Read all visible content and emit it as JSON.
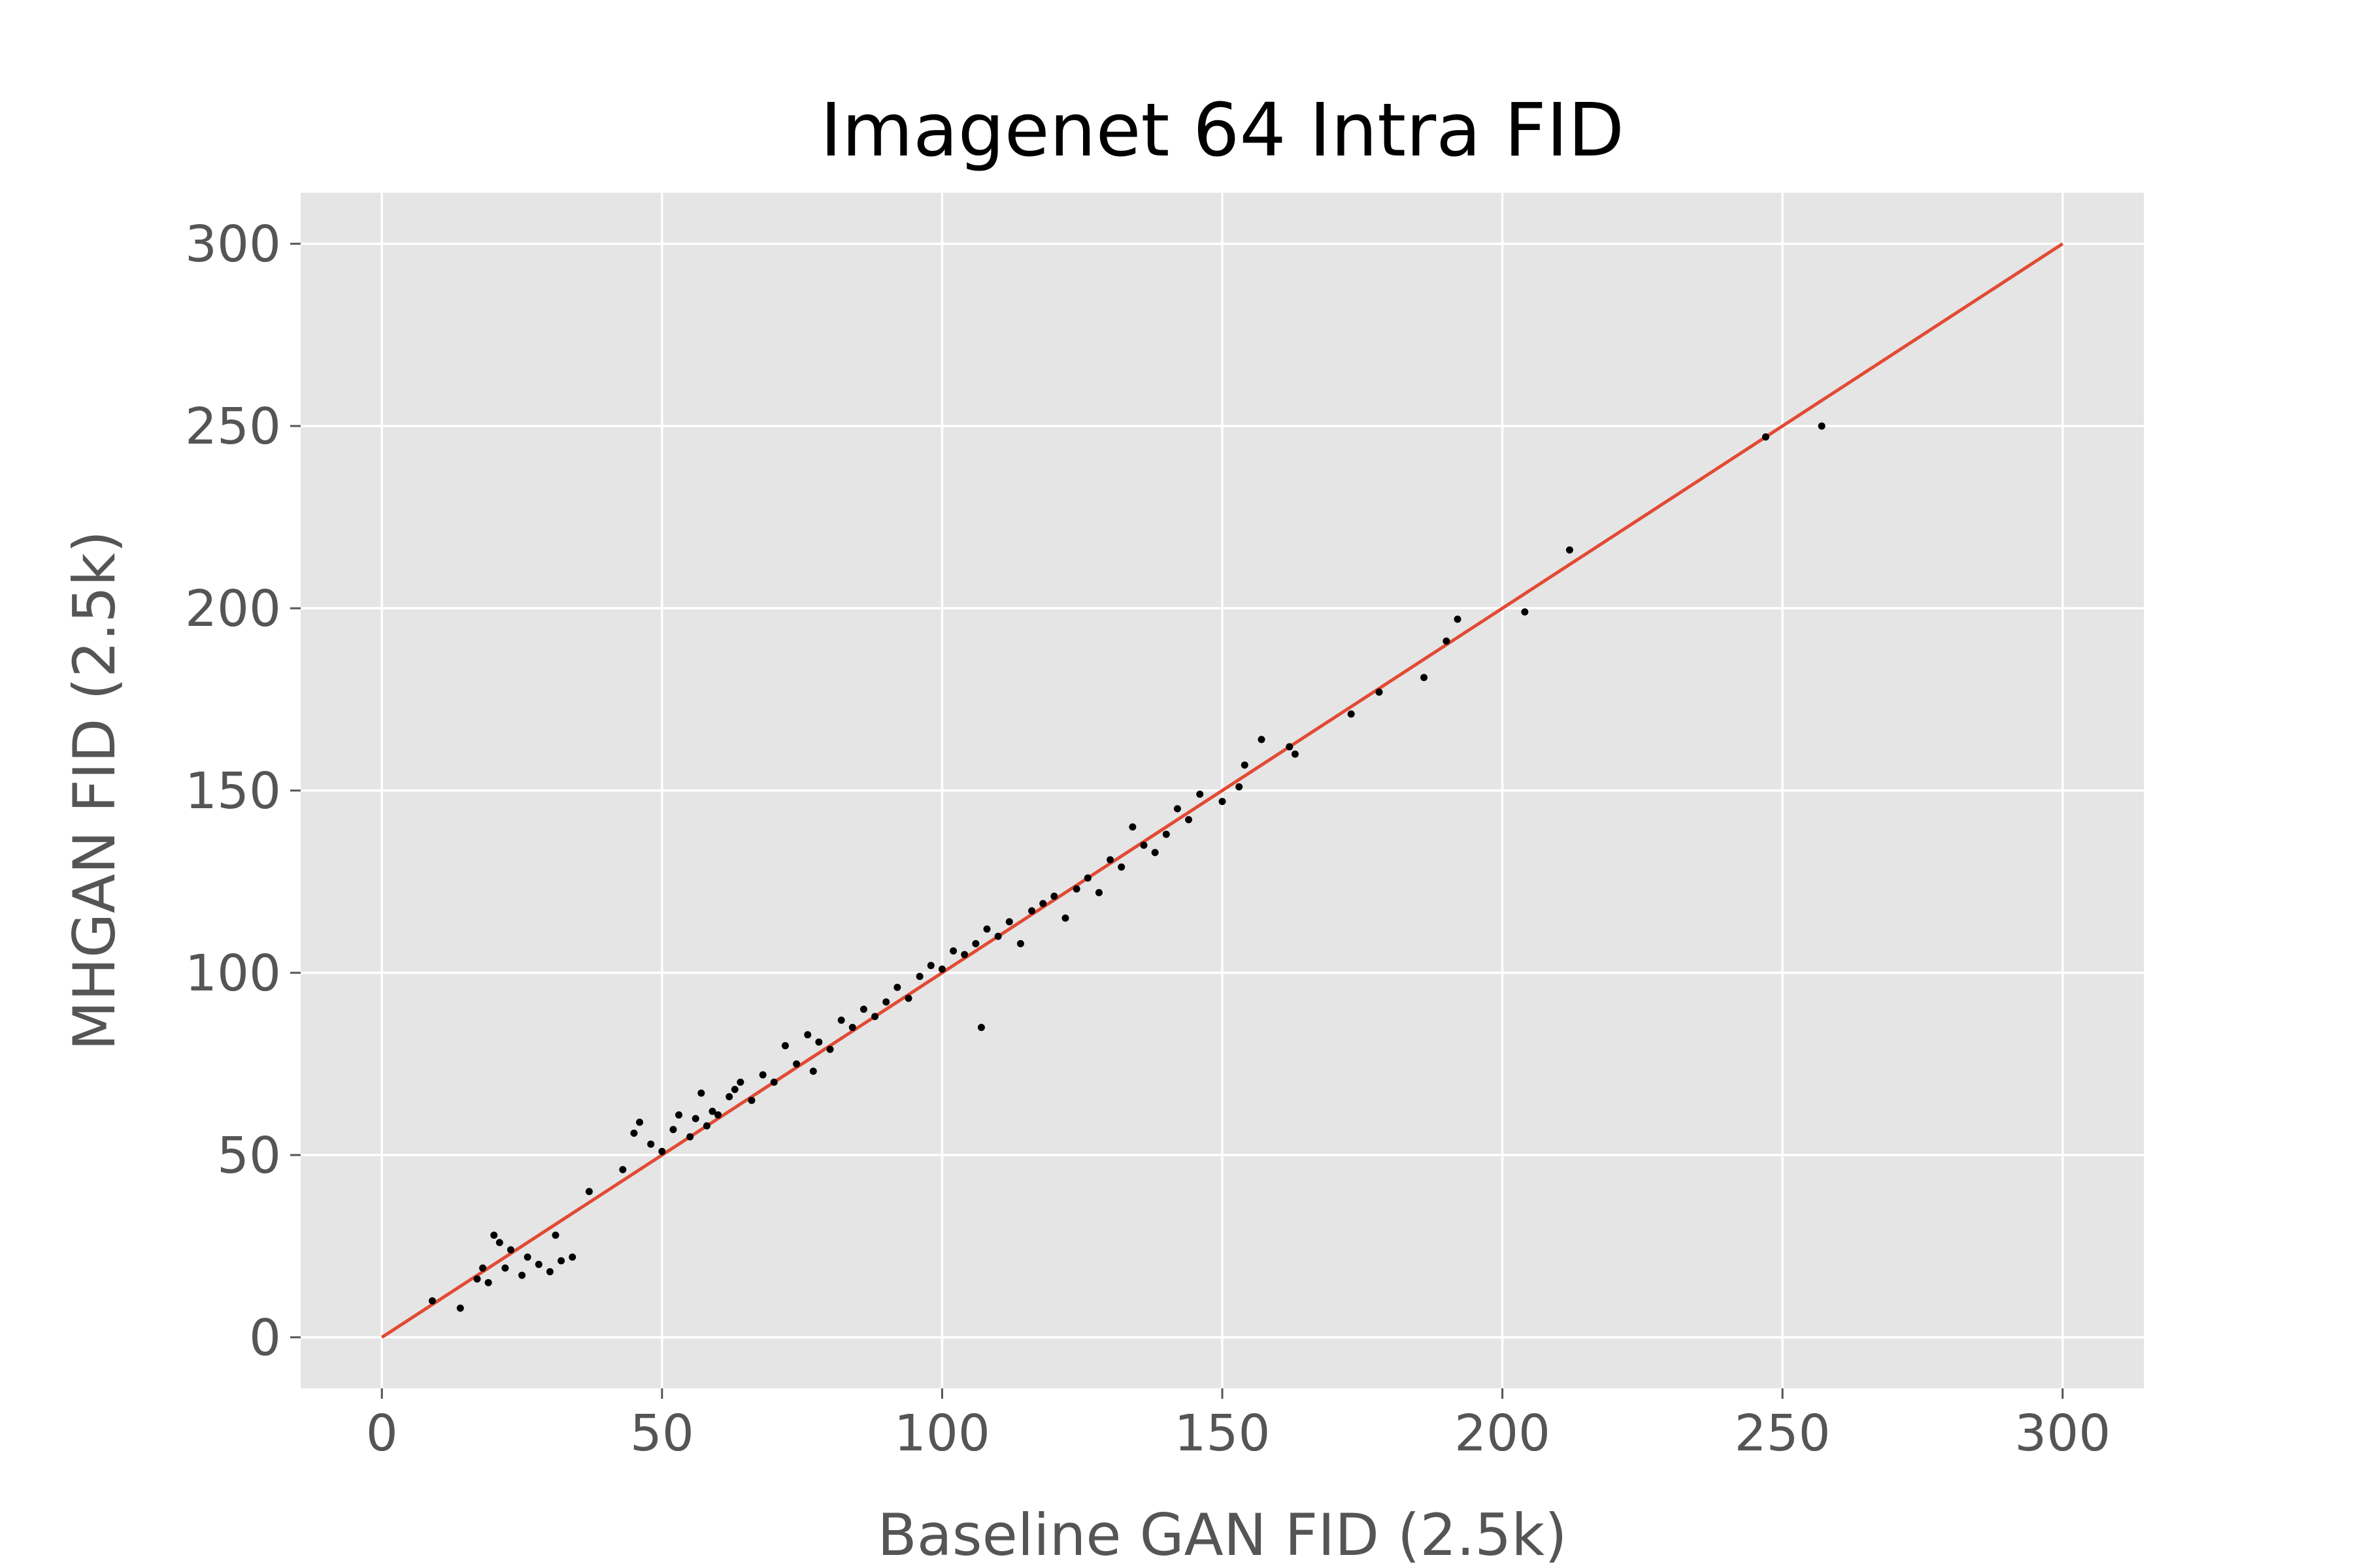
{
  "chart_data": {
    "type": "scatter",
    "title": "Imagenet 64 Intra FID",
    "xlabel": "Baseline GAN FID (2.5k)",
    "ylabel": "MHGAN FID (2.5k)",
    "xlim": [
      -14.5,
      314.5
    ],
    "ylim": [
      -14,
      314
    ],
    "xticks": [
      "0",
      "50",
      "100",
      "150",
      "200",
      "250",
      "300"
    ],
    "yticks": [
      "0",
      "50",
      "100",
      "150",
      "200",
      "250",
      "300"
    ],
    "grid": true,
    "background": "#e5e5e5",
    "point_color": "#000000",
    "line_color": "#e24a33",
    "reference_line": {
      "x": [
        0,
        300
      ],
      "y": [
        0,
        300
      ]
    },
    "series": [
      {
        "x": [
          9,
          14,
          17,
          18,
          19,
          20,
          21,
          22,
          23,
          25,
          26,
          28,
          30,
          31,
          32,
          34,
          37,
          43,
          45,
          46,
          48,
          50,
          52,
          53,
          55,
          56,
          57,
          58,
          59,
          60,
          62,
          63,
          64,
          66,
          68,
          70,
          72,
          74,
          76,
          77,
          78,
          80,
          82,
          84,
          86,
          88,
          90,
          92,
          94,
          96,
          98,
          100,
          102,
          104,
          106,
          107,
          108,
          110,
          112,
          114,
          116,
          118,
          120,
          122,
          124,
          126,
          128,
          130,
          132,
          134,
          136,
          138,
          140,
          142,
          144,
          146,
          150,
          153,
          154,
          157,
          162,
          163,
          173,
          178,
          186,
          190,
          192,
          204,
          212,
          247,
          257
        ],
        "y": [
          10,
          8,
          16,
          19,
          15,
          28,
          26,
          19,
          24,
          17,
          22,
          20,
          18,
          28,
          21,
          22,
          40,
          46,
          56,
          59,
          53,
          51,
          57,
          61,
          55,
          60,
          67,
          58,
          62,
          61,
          66,
          68,
          70,
          65,
          72,
          70,
          80,
          75,
          83,
          73,
          81,
          79,
          87,
          85,
          90,
          88,
          92,
          96,
          93,
          99,
          102,
          101,
          106,
          105,
          108,
          85,
          112,
          110,
          114,
          108,
          117,
          119,
          121,
          115,
          123,
          126,
          122,
          131,
          129,
          140,
          135,
          133,
          138,
          145,
          142,
          149,
          147,
          151,
          157,
          164,
          162,
          160,
          171,
          177,
          181,
          191,
          197,
          199,
          216,
          247,
          250
        ]
      }
    ]
  }
}
